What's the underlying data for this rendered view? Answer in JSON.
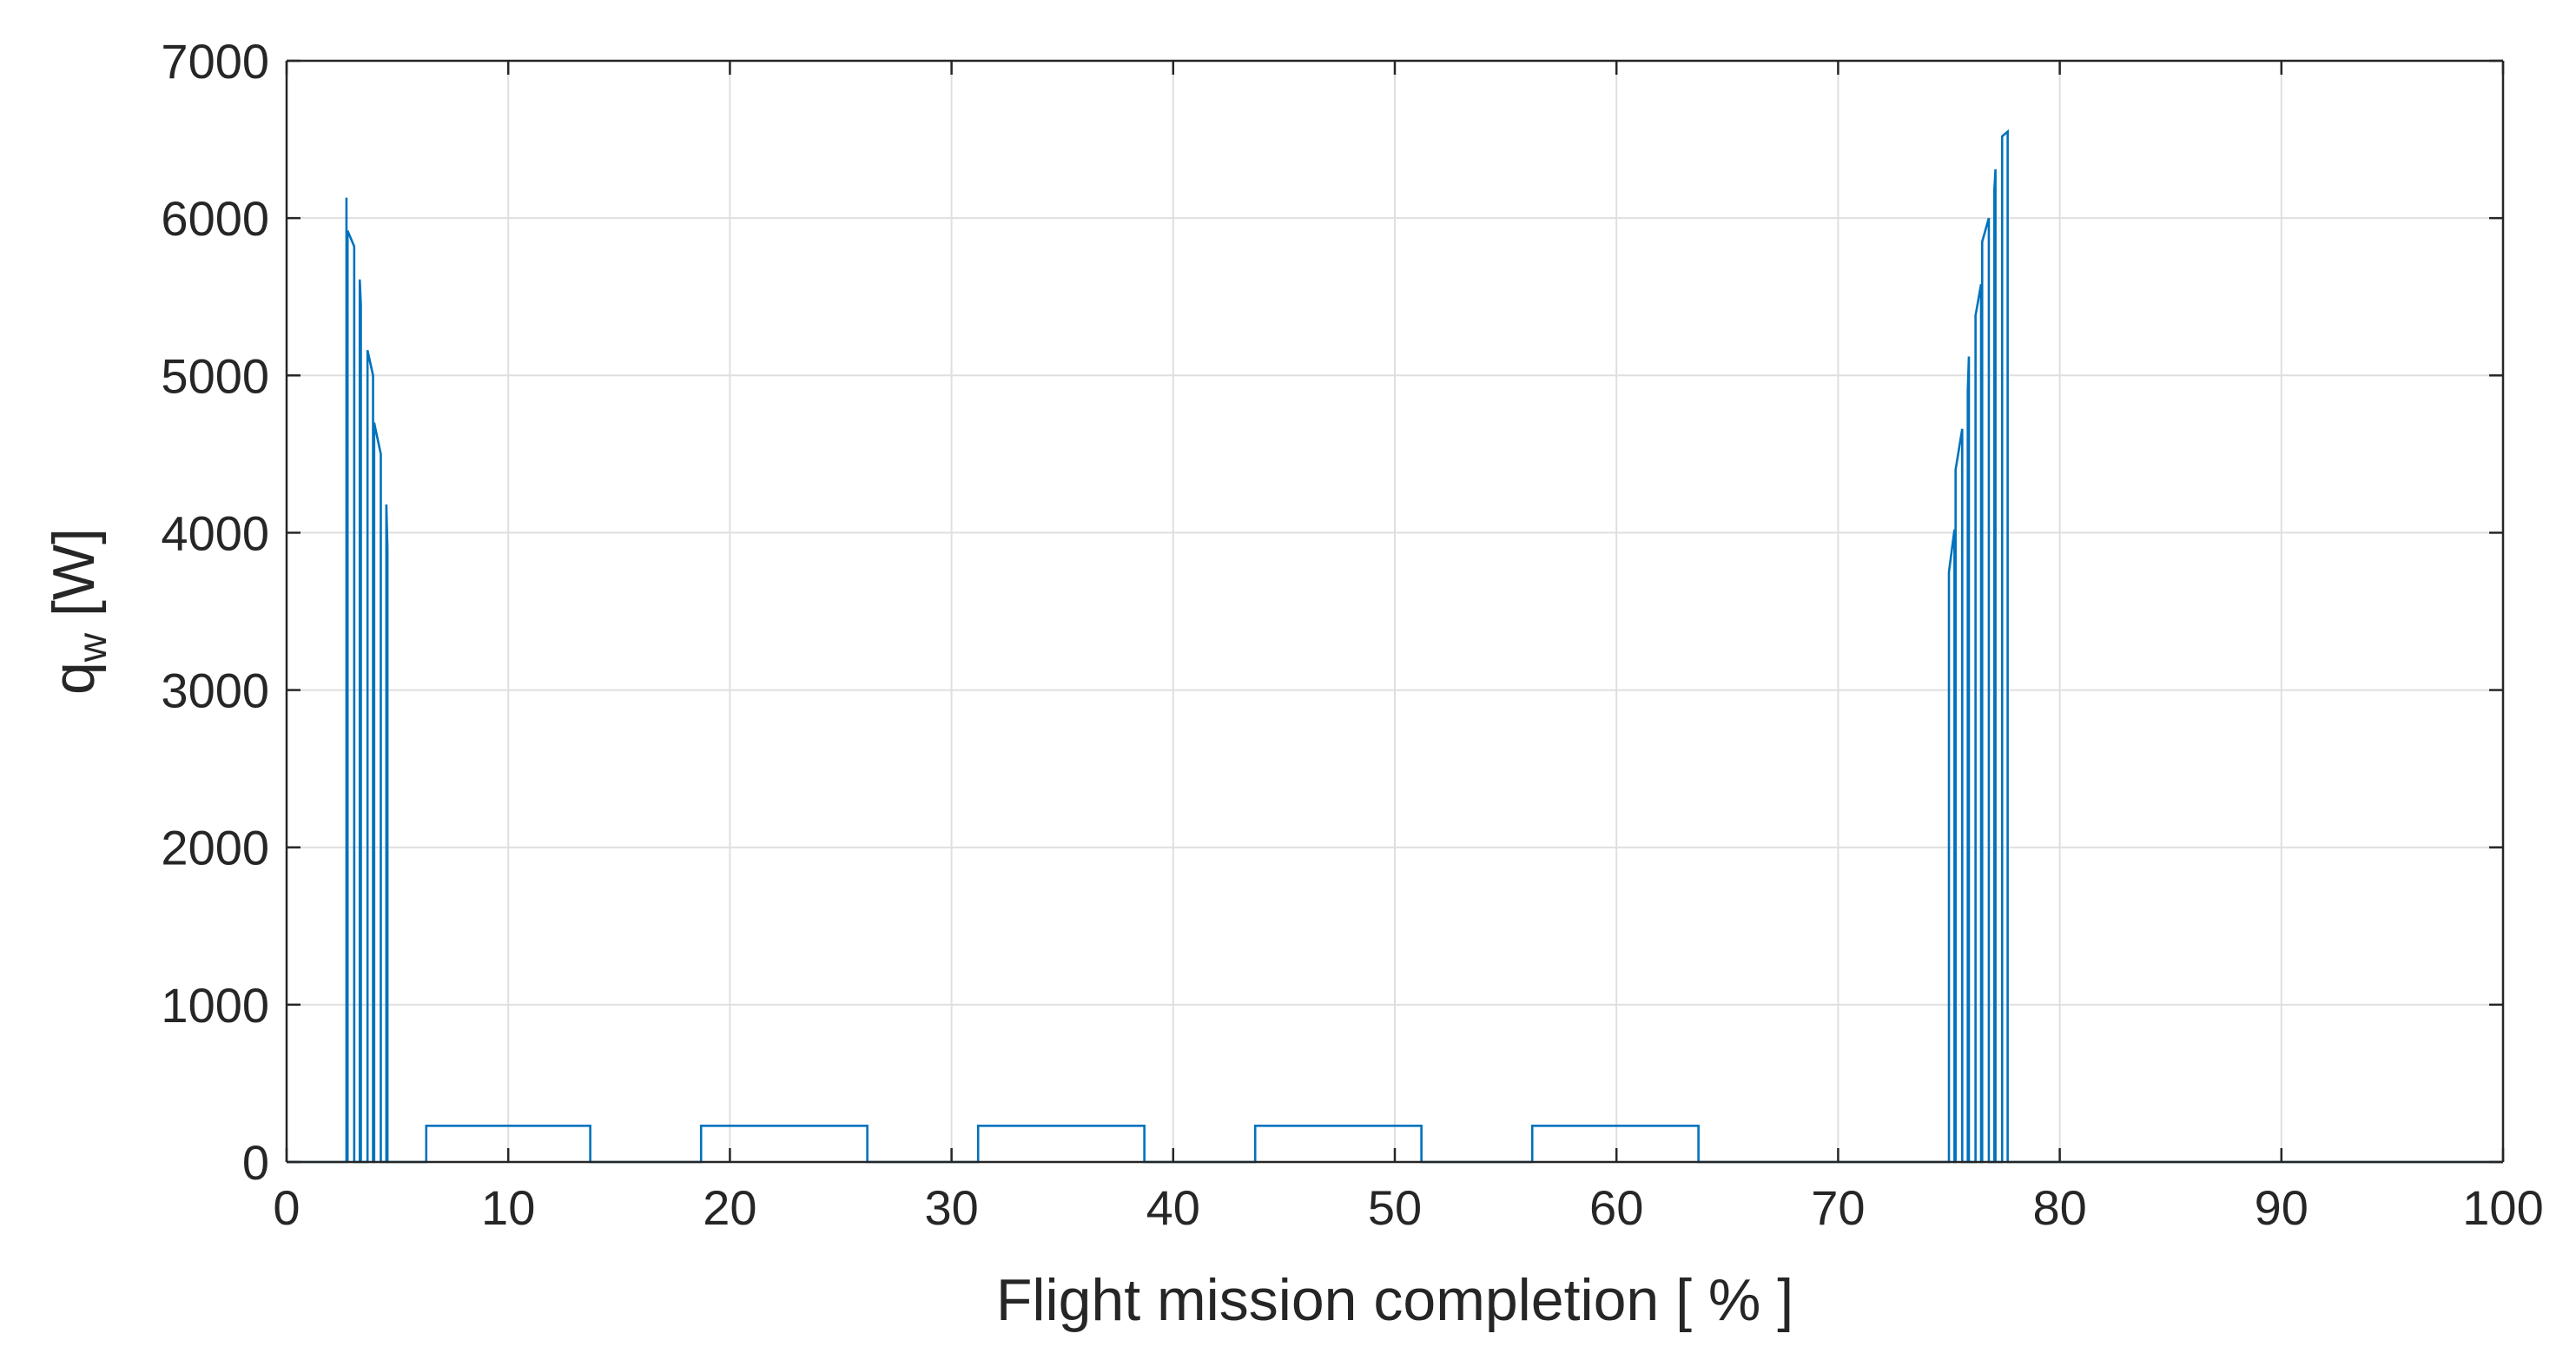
{
  "chart_data": {
    "type": "line",
    "xlabel": "Flight mission completion [ % ]",
    "ylabel_main": "q",
    "ylabel_sub": "w",
    "ylabel_unit": " [W]",
    "xlim": [
      0,
      100
    ],
    "ylim": [
      0,
      7000
    ],
    "xticks": [
      0,
      10,
      20,
      30,
      40,
      50,
      60,
      70,
      80,
      90,
      100
    ],
    "yticks": [
      0,
      1000,
      2000,
      3000,
      4000,
      5000,
      6000,
      7000
    ],
    "xtick_labels": [
      "0",
      "10",
      "20",
      "30",
      "40",
      "50",
      "60",
      "70",
      "80",
      "90",
      "100"
    ],
    "ytick_labels": [
      "0",
      "1000",
      "2000",
      "3000",
      "4000",
      "5000",
      "6000",
      "7000"
    ],
    "grid": true,
    "series_color": "#0072bd",
    "series": [
      {
        "x": [
          0,
          2.7,
          2.7,
          2.75,
          2.75,
          3.05,
          3.05,
          3.3,
          3.3,
          3.35,
          3.35,
          3.65,
          3.65,
          3.9,
          3.9,
          3.95,
          3.95,
          4.25,
          4.25,
          4.5,
          4.5,
          4.55,
          4.55,
          4.85,
          4.85,
          5.1,
          5.1,
          5.15,
          5.15,
          5.45,
          5.45,
          5.7,
          5.7,
          5.75,
          5.75,
          6.1,
          6.1,
          6.3,
          6.3,
          13.7,
          13.7,
          18.7,
          18.7,
          26.2,
          26.2,
          31.2,
          31.2,
          38.7,
          38.7,
          43.7,
          43.7,
          51.2,
          51.2,
          56.2,
          56.2,
          63.7,
          63.7,
          75.0,
          75.0,
          75.25,
          75.25,
          75.3,
          75.3,
          75.6,
          75.6,
          75.85,
          75.85,
          75.9,
          75.9,
          76.2,
          76.2,
          76.45,
          76.45,
          76.5,
          76.5,
          76.8,
          76.8,
          77.05,
          77.05,
          77.1,
          77.1,
          77.4,
          77.4,
          77.65,
          77.65,
          77.7,
          77.7,
          78.0,
          78.0,
          78.25,
          78.25,
          78.3,
          78.3,
          78.6,
          78.6,
          78.8,
          78.8,
          78.9,
          78.9,
          100
        ],
        "y": [
          0,
          0,
          6130,
          0,
          5920,
          5820,
          0,
          0,
          5610,
          5450,
          0,
          0,
          5160,
          5000,
          0,
          0,
          4700,
          4500,
          0,
          0,
          4180,
          3900,
          0,
          0,
          0,
          0,
          0,
          0,
          0,
          0,
          0,
          0,
          0,
          0,
          0,
          0,
          0,
          0,
          230,
          230,
          0,
          0,
          230,
          230,
          0,
          0,
          230,
          230,
          0,
          0,
          230,
          230,
          0,
          0,
          230,
          230,
          0,
          0,
          3750,
          4020,
          0,
          0,
          4400,
          4660,
          0,
          0,
          4900,
          5120,
          0,
          0,
          5380,
          5580,
          0,
          0,
          5850,
          6000,
          0,
          0,
          6180,
          6310,
          0,
          0,
          6520,
          6550,
          0,
          0,
          0,
          0,
          0,
          0,
          0,
          0,
          0,
          0,
          0,
          0,
          0,
          0,
          0,
          0
        ]
      }
    ]
  }
}
